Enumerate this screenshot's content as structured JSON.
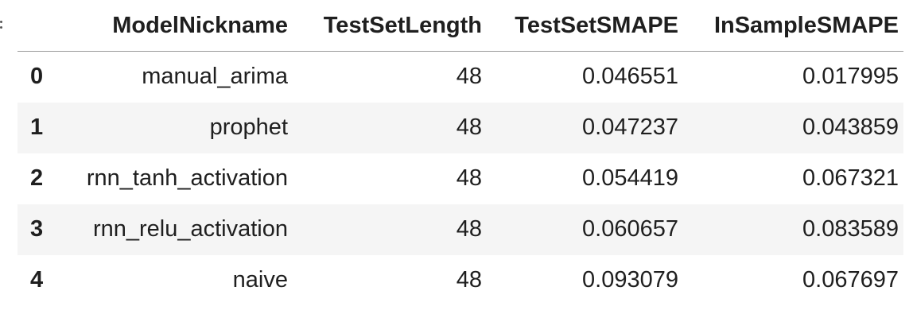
{
  "table": {
    "columns": [
      "",
      "ModelNickname",
      "TestSetLength",
      "TestSetSMAPE",
      "InSampleSMAPE"
    ],
    "rows": [
      {
        "index": "0",
        "ModelNickname": "manual_arima",
        "TestSetLength": "48",
        "TestSetSMAPE": "0.046551",
        "InSampleSMAPE": "0.017995"
      },
      {
        "index": "1",
        "ModelNickname": "prophet",
        "TestSetLength": "48",
        "TestSetSMAPE": "0.047237",
        "InSampleSMAPE": "0.043859"
      },
      {
        "index": "2",
        "ModelNickname": "rnn_tanh_activation",
        "TestSetLength": "48",
        "TestSetSMAPE": "0.054419",
        "InSampleSMAPE": "0.067321"
      },
      {
        "index": "3",
        "ModelNickname": "rnn_relu_activation",
        "TestSetLength": "48",
        "TestSetSMAPE": "0.060657",
        "InSampleSMAPE": "0.083589"
      },
      {
        "index": "4",
        "ModelNickname": "naive",
        "TestSetLength": "48",
        "TestSetSMAPE": "0.093079",
        "InSampleSMAPE": "0.067697"
      }
    ]
  },
  "colors": {
    "header_rule": "#9a9a9a",
    "stripe": "#f5f5f5",
    "text": "#1f1f1f"
  }
}
